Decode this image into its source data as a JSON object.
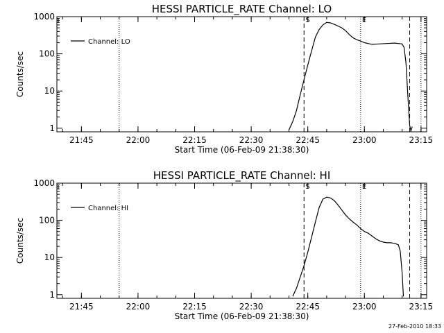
{
  "chart_data": [
    {
      "type": "line",
      "title": "HESSI PARTICLE_RATE Channel: LO",
      "xlabel": "Start Time (06-Feb-09 21:38:30)",
      "ylabel": "Counts/sec",
      "yscale": "log",
      "ylim": [
        0.8,
        1000
      ],
      "xlim_minutes_after_2138_30": [
        0,
        98
      ],
      "x_ticks": [
        "21:45",
        "22:00",
        "22:15",
        "22:30",
        "22:45",
        "23:00",
        "23:15"
      ],
      "y_ticks": [
        "1",
        "10",
        "100",
        "1000"
      ],
      "legend": {
        "position": "top-left",
        "entries": [
          "Channel: LO"
        ]
      },
      "markers": [
        {
          "label": "S",
          "time": "22:44",
          "style": "dashed"
        },
        {
          "label": "E",
          "time": "22:59",
          "style": "dotted"
        }
      ],
      "reference_lines": [
        {
          "time": "21:55",
          "style": "dotted"
        },
        {
          "time": "23:12",
          "style": "dashed"
        },
        {
          "time": "23:15",
          "style": "dotted"
        }
      ],
      "series": [
        {
          "name": "Channel: LO",
          "x": [
            "22:40",
            "22:41",
            "22:42",
            "22:43",
            "22:44",
            "22:45",
            "22:46",
            "22:47",
            "22:48",
            "22:49",
            "22:50",
            "22:51",
            "22:52",
            "22:53",
            "22:54",
            "22:55",
            "22:56",
            "22:57",
            "22:58",
            "22:59",
            "23:00",
            "23:02",
            "23:04",
            "23:06",
            "23:08",
            "23:10",
            "23:10:30",
            "23:11",
            "23:11:30",
            "23:12",
            "23:12:20",
            "23:12:40"
          ],
          "values": [
            0.9,
            1.5,
            3,
            8,
            20,
            50,
            120,
            280,
            450,
            600,
            700,
            680,
            620,
            560,
            500,
            420,
            330,
            270,
            240,
            220,
            200,
            180,
            185,
            190,
            195,
            185,
            150,
            60,
            8,
            1.2,
            0.85,
            1.1
          ]
        }
      ]
    },
    {
      "type": "line",
      "title": "HESSI PARTICLE_RATE Channel: HI",
      "xlabel": "Start Time (06-Feb-09 21:38:30)",
      "ylabel": "Counts/sec",
      "yscale": "log",
      "ylim": [
        0.8,
        1000
      ],
      "xlim_minutes_after_2138_30": [
        0,
        98
      ],
      "x_ticks": [
        "21:45",
        "22:00",
        "22:15",
        "22:30",
        "22:45",
        "23:00",
        "23:15"
      ],
      "y_ticks": [
        "1",
        "10",
        "100",
        "1000"
      ],
      "legend": {
        "position": "top-left",
        "entries": [
          "Channel: HI"
        ]
      },
      "markers": [
        {
          "label": "S",
          "time": "22:44",
          "style": "dashed"
        },
        {
          "label": "E",
          "time": "22:59",
          "style": "dotted"
        }
      ],
      "reference_lines": [
        {
          "time": "21:55",
          "style": "dotted"
        },
        {
          "time": "23:12",
          "style": "dashed"
        },
        {
          "time": "23:15",
          "style": "dotted"
        }
      ],
      "series": [
        {
          "name": "Channel: HI",
          "x": [
            "22:41",
            "22:42",
            "22:43",
            "22:44",
            "22:45",
            "22:46",
            "22:47",
            "22:48",
            "22:49",
            "22:50",
            "22:51",
            "22:52",
            "22:53",
            "22:54",
            "22:55",
            "22:56",
            "22:57",
            "22:58",
            "22:59",
            "23:00",
            "23:01",
            "23:02",
            "23:03",
            "23:04",
            "23:05",
            "23:06",
            "23:07",
            "23:08",
            "23:09",
            "23:09:30",
            "23:10",
            "23:10:20"
          ],
          "values": [
            0.9,
            1.5,
            3,
            6,
            14,
            35,
            90,
            220,
            370,
            420,
            400,
            340,
            260,
            190,
            140,
            110,
            90,
            75,
            60,
            50,
            45,
            38,
            32,
            28,
            26,
            25,
            25,
            24,
            22,
            15,
            4,
            0.9
          ]
        }
      ]
    }
  ],
  "footer": {
    "timestamp": "27-Feb-2010 18:33"
  }
}
